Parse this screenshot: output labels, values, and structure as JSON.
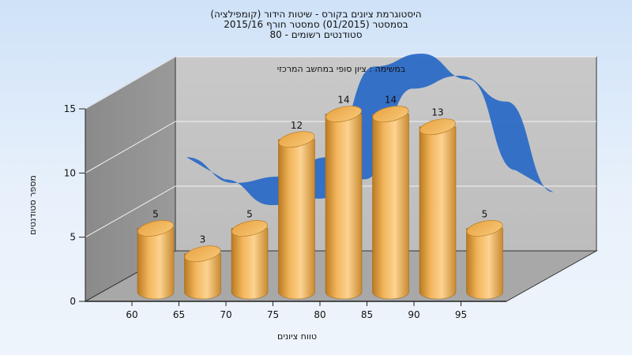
{
  "chart_data": {
    "type": "bar",
    "title_lines": [
      "היסטוגרמת ציונים בקורס - שיטות הידור (קומפילציה)",
      "בסמסטר  (01/2015)  סמסטר חורף  2015/16",
      "סטודנטים רשומים - 80"
    ],
    "subtitle": "במשימה : ציון סופי במחשב המרכזי",
    "xlabel": "טווח ציונים",
    "ylabel": "מספר סטודנטים",
    "categories": [
      "60",
      "65",
      "70",
      "75",
      "80",
      "85",
      "90",
      "95"
    ],
    "series": [
      {
        "values": [
          5,
          3,
          5,
          12,
          14,
          14,
          13,
          5
        ]
      }
    ],
    "value_labels": [
      "5",
      "3",
      "5",
      "12",
      "14",
      "14",
      "13",
      "5"
    ],
    "trend": {
      "type": "ribbon",
      "values": [
        7,
        5,
        5.5,
        7,
        14,
        15,
        13,
        6
      ]
    },
    "yticks": [
      "0",
      "5",
      "10",
      "15"
    ],
    "ylim": [
      0,
      15
    ],
    "grid": true,
    "legend": "none",
    "colors": {
      "bar": "#e8a94a",
      "bar_light": "#fcd08a",
      "bar_dark": "#b97a23",
      "trend": "#2d6cc7",
      "wall_back": "#c4c4c4",
      "wall_side": "#8c8c8c",
      "floor": "#a9a9a9"
    }
  }
}
